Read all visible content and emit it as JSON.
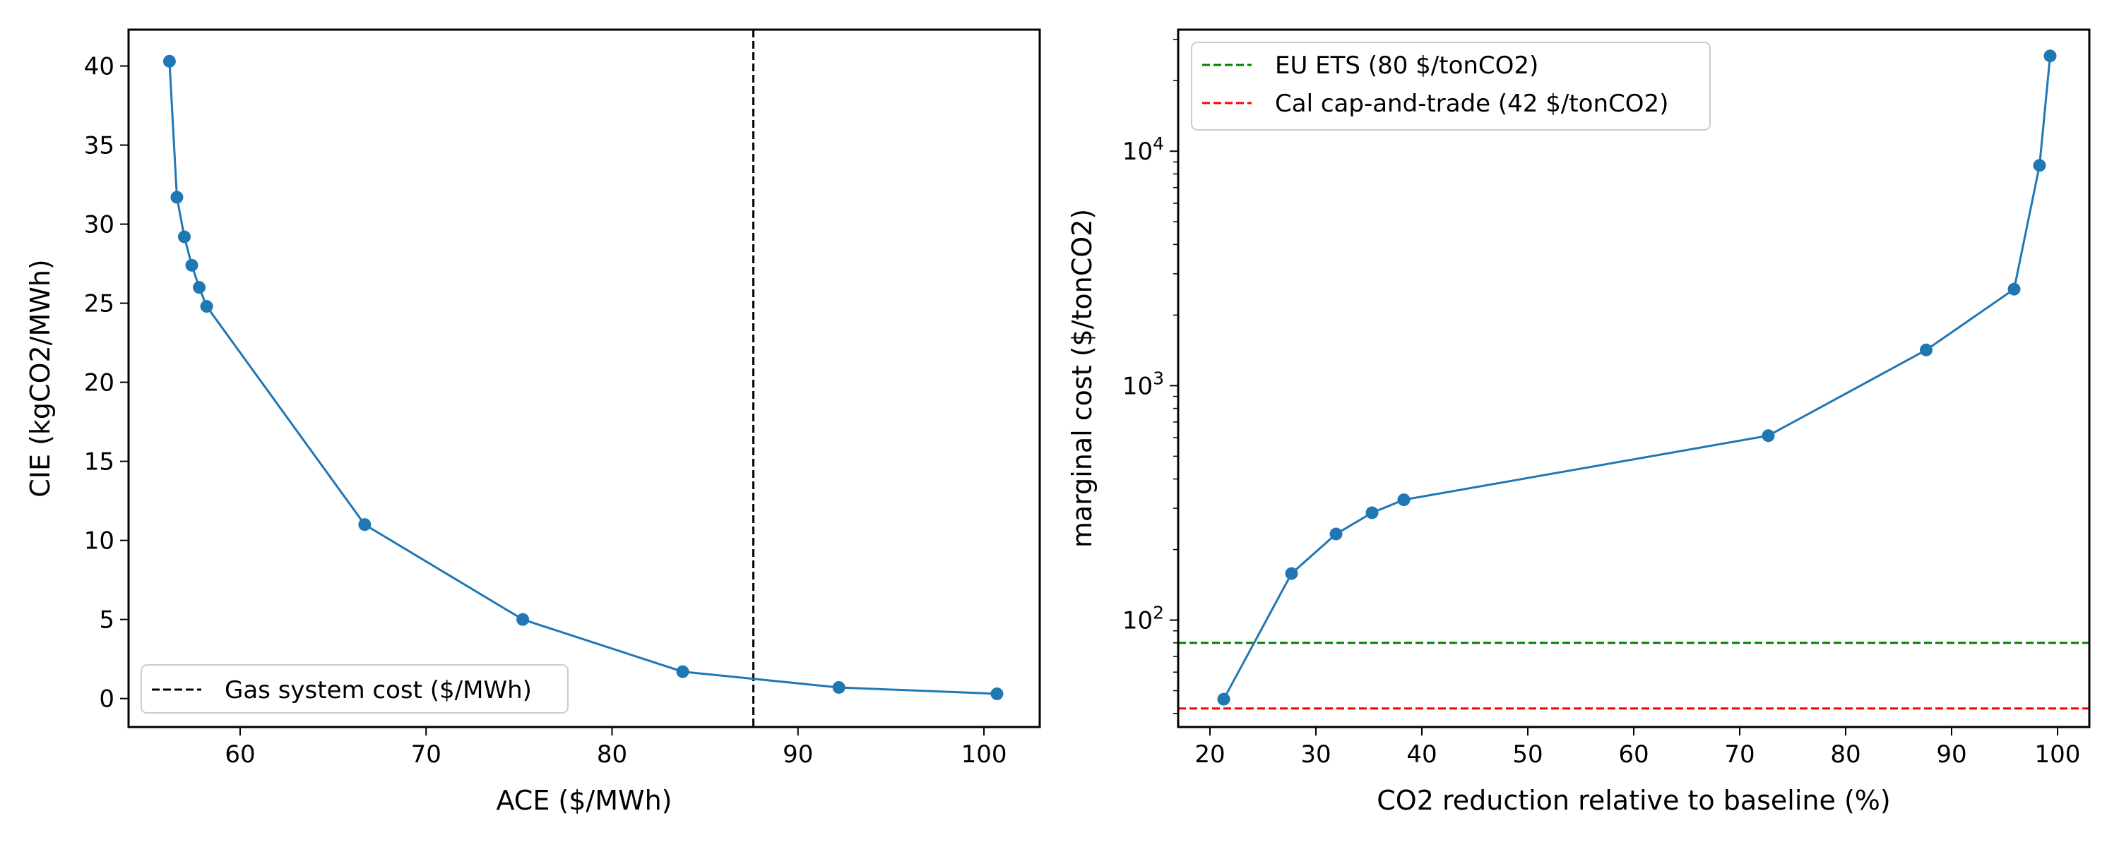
{
  "chart_data": [
    {
      "type": "line",
      "xlabel": "ACE ($/MWh)",
      "ylabel": "CIE (kgCO2/MWh)",
      "xlim": [
        54,
        103
      ],
      "ylim": [
        -1.8,
        42.3
      ],
      "xticks": [
        60,
        70,
        80,
        90,
        100
      ],
      "yticks": [
        0,
        5,
        10,
        15,
        20,
        25,
        30,
        35,
        40
      ],
      "series": [
        {
          "color": "#1f77b4",
          "marker": "circle",
          "x": [
            56.2,
            56.6,
            57.0,
            57.4,
            57.8,
            58.2,
            66.7,
            75.2,
            83.8,
            92.2,
            100.7
          ],
          "y": [
            40.3,
            31.7,
            29.2,
            27.4,
            26.0,
            24.8,
            11.0,
            5.0,
            1.7,
            0.7,
            0.3
          ]
        }
      ],
      "vline": {
        "x": 87.6,
        "color": "#000000",
        "style": "dashed",
        "label": "Gas system cost ($/MWh)"
      },
      "legend": {
        "position": "lower-left",
        "entries": [
          "Gas system cost ($/MWh)"
        ]
      },
      "grid": false
    },
    {
      "type": "line",
      "xlabel": "CO2 reduction relative to baseline (%)",
      "ylabel": "marginal cost ($/tonCO2)",
      "yscale": "log",
      "xlim": [
        17,
        103
      ],
      "ylim": [
        35,
        33000
      ],
      "xticks": [
        20,
        30,
        40,
        50,
        60,
        70,
        80,
        90,
        100
      ],
      "yticks_major": [
        {
          "value": 100,
          "base": "10",
          "exp": "2"
        },
        {
          "value": 1000,
          "base": "10",
          "exp": "3"
        },
        {
          "value": 10000,
          "base": "10",
          "exp": "4"
        }
      ],
      "series": [
        {
          "color": "#1f77b4",
          "marker": "circle",
          "x": [
            21.3,
            27.7,
            31.9,
            35.3,
            38.3,
            72.7,
            87.6,
            95.9,
            98.3,
            99.3
          ],
          "y": [
            46,
            158,
            233,
            287,
            326,
            612,
            1420,
            2580,
            8700,
            25500
          ]
        }
      ],
      "hlines": [
        {
          "y": 80,
          "color": "#008000",
          "style": "dashed",
          "label": "EU ETS (80 $/tonCO2)"
        },
        {
          "y": 42,
          "color": "#ff0000",
          "style": "dashed",
          "label": "Cal cap-and-trade (42 $/tonCO2)"
        }
      ],
      "legend": {
        "position": "top-left",
        "entries": [
          "EU ETS (80 $/tonCO2)",
          "Cal cap-and-trade (42 $/tonCO2)"
        ]
      },
      "grid": false
    }
  ]
}
